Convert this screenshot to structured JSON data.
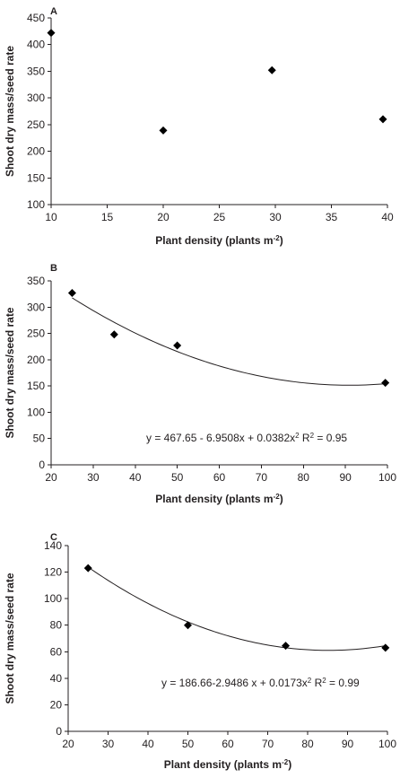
{
  "chart_data": [
    {
      "type": "scatter",
      "panel_label": "A",
      "xlabel": "Plant density (plants m",
      "xlabel_sup": "-2",
      "xlabel_end": ")",
      "ylabel": "Shoot dry mass/seed rate",
      "xlim": [
        10,
        40
      ],
      "ylim": [
        100,
        450
      ],
      "xticks": [
        10,
        15,
        20,
        25,
        30,
        35,
        40
      ],
      "yticks": [
        100,
        150,
        200,
        250,
        300,
        350,
        400,
        450
      ],
      "points": [
        {
          "x": 10,
          "y": 422
        },
        {
          "x": 20,
          "y": 239
        },
        {
          "x": 29.7,
          "y": 352
        },
        {
          "x": 39.6,
          "y": 260
        }
      ],
      "grid": false,
      "legend": "none"
    },
    {
      "type": "scatter",
      "panel_label": "B",
      "xlabel": "Plant density (plants m",
      "xlabel_sup": "-2",
      "xlabel_end": ")",
      "ylabel": "Shoot dry mass/seed rate",
      "xlim": [
        20,
        100
      ],
      "ylim": [
        0,
        350
      ],
      "xticks": [
        20,
        30,
        40,
        50,
        60,
        70,
        80,
        90,
        100
      ],
      "yticks": [
        0,
        50,
        100,
        150,
        200,
        250,
        300,
        350
      ],
      "points": [
        {
          "x": 25,
          "y": 327
        },
        {
          "x": 35,
          "y": 248
        },
        {
          "x": 50,
          "y": 227
        },
        {
          "x": 99.5,
          "y": 156
        }
      ],
      "trendline": {
        "kind": "quadratic",
        "coefficients": [
          467.65,
          -6.9508,
          0.0382
        ],
        "x_range": [
          25,
          99.5
        ],
        "equation": "y = 467.65 - 6.9508x + 0.0382x",
        "equation_sup": "2",
        "r2_label": " R",
        "r2_sup": "2",
        "r2_value": " = 0.95"
      },
      "grid": false,
      "legend": "none"
    },
    {
      "type": "scatter",
      "panel_label": "C",
      "xlabel": "Plant density (plants m",
      "xlabel_sup": "-2",
      "xlabel_end": ")",
      "ylabel": "Shoot dry mass/seed rate",
      "xlim": [
        20,
        100
      ],
      "ylim": [
        0,
        140
      ],
      "xticks": [
        20,
        30,
        40,
        50,
        60,
        70,
        80,
        90,
        100
      ],
      "yticks": [
        0,
        20,
        40,
        60,
        80,
        100,
        120,
        140
      ],
      "points": [
        {
          "x": 25,
          "y": 123
        },
        {
          "x": 50,
          "y": 80
        },
        {
          "x": 74.5,
          "y": 64.5
        },
        {
          "x": 99.5,
          "y": 63
        }
      ],
      "trendline": {
        "kind": "quadratic",
        "coefficients": [
          186.66,
          -2.9486,
          0.0173
        ],
        "x_range": [
          25,
          99.5
        ],
        "equation": "y = 186.66-2.9486 x + 0.0173x",
        "equation_sup": "2",
        "r2_label": " R",
        "r2_sup": "2",
        "r2_value": " = 0.99"
      },
      "grid": false,
      "legend": "none"
    }
  ]
}
